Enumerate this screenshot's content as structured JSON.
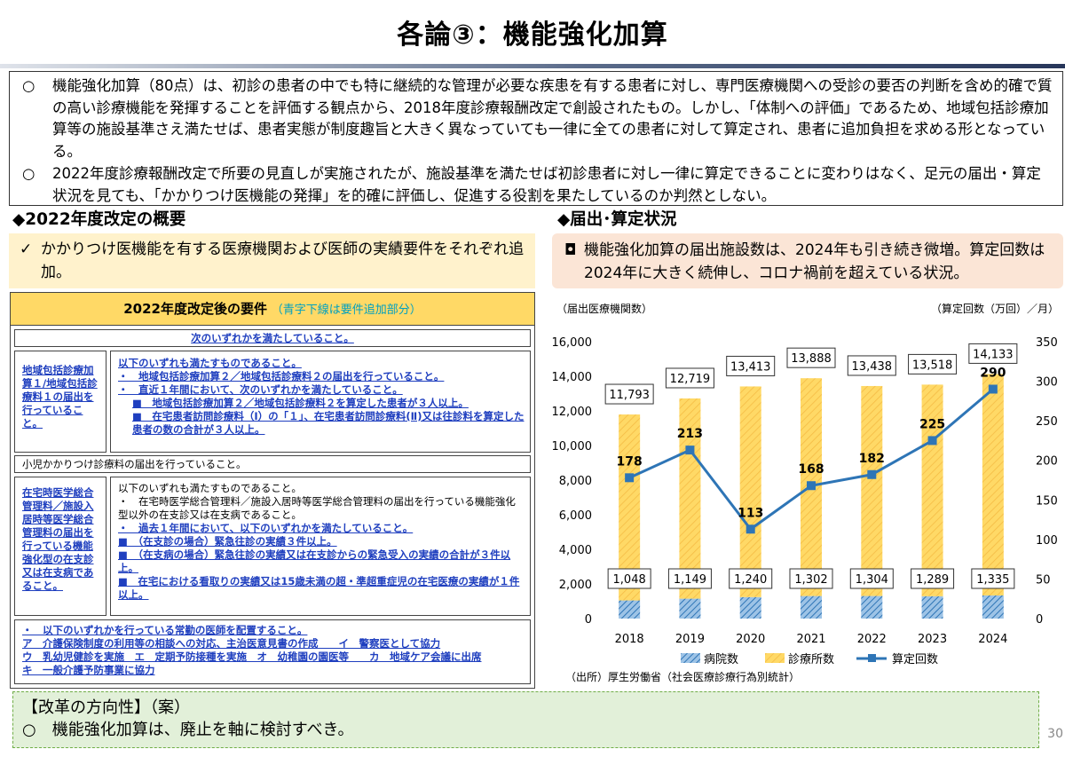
{
  "title": "各論③：機能強化加算",
  "intro": {
    "marker": "○",
    "p1": "機能強化加算（80点）は、初診の患者の中でも特に継続的な管理が必要な疾患を有する患者に対し、専門医療機関への受診の要否の判断を含め的確で質の高い診療機能を発揮することを評価する観点から、2018年度診療報酬改定で創設されたもの。しかし、「体制への評価」であるため、地域包括診療加算等の施設基準さえ満たせば、患者実態が制度趣旨と大きく異なっていても一律に全ての患者に対して算定され、患者に追加負担を求める形となっている。",
    "p2": "2022年度診療報酬改定で所要の見直しが実施されたが、施設基準を満たせば初診患者に対し一律に算定できることに変わりはなく、足元の届出・算定状況を見ても、「かかりつけ医機能の発揮」を的確に評価し、促進する役割を果たしているのか判然としない。"
  },
  "left": {
    "heading": "◆2022年度改定の概要",
    "callout_mark": "✓",
    "callout": "かかりつけ医機能を有する医療機関および医師の実績要件をそれぞれ追加。",
    "req_title": "2022年度改定後の要件",
    "req_note": "（青字下線は要件追加部分）",
    "either": "次のいずれかを満たしていること。",
    "r1_label": "地域包括診療加算１/地域包括診療料１の届出を行っていること。",
    "r1_l1": "以下のいずれも満たすものであること。",
    "r1_l2": "・　地域包括診療加算２／地域包括診療料２の届出を行っていること。",
    "r1_l3": "・　直近１年間において、次のいずれかを満たしていること。",
    "r1_l4": "■　地域包括診療加算２／地域包括診療料２を算定した患者が３人以上。",
    "r1_l5": "■　在宅患者訪問診療料（Ⅰ）の「１」、在宅患者訪問診療料(Ⅱ)又は往診料を算定した患者の数の合計が３人以上。",
    "r2": "小児かかりつけ診療料の届出を行っていること。",
    "r3_label": "在宅時医学総合管理料／施設入居時等医学総合管理料の届出を行っている機能強化型の在支診又は在支病であること。",
    "r3_l1": "以下のいずれも満たすものであること。",
    "r3_l2": "・　在宅時医学総合管理料／施設入居時等医学総合管理料の届出を行っている機能強化型以外の在支診又は在支病であること。",
    "r3_l3": "・　過去１年間において、以下のいずれかを満たしていること。",
    "r3_l4": "■　（在支診の場合）緊急往診の実績３件以上。",
    "r3_l5": "■　（在支病の場合）緊急往診の実績又は在支診からの緊急受入の実績の合計が３件以上。",
    "r3_l6": "■　在宅における看取りの実績又は15歳未満の超・準超重症児の在宅医療の実績が１件以上。",
    "r4_l1": "・　以下のいずれかを行っている常勤の医師を配置すること。",
    "r4_l2": "ア　介護保険制度の利用等の相談への対応、主治医意見書の作成　　イ　警察医として協力",
    "r4_l3": "ウ　乳幼児健診を実施　エ　定期予防接種を実施　オ　幼稚園の園医等　　カ　地域ケア会議に出席",
    "r4_l4": "キ　一般介護予防事業に協力"
  },
  "right": {
    "heading": "◆届出･算定状況",
    "callout_mark": "◘",
    "callout": "機能強化加算の届出施設数は、2024年も引き続き微増。算定回数は2024年に大きく続伸し、コロナ禍前を超えている状況。",
    "source": "（出所）厚生労働省（社会医療診療行為別統計）"
  },
  "chart_data": {
    "type": "bar",
    "categories": [
      "2018",
      "2019",
      "2020",
      "2021",
      "2022",
      "2023",
      "2024"
    ],
    "series": [
      {
        "name": "病院数",
        "type": "stacked-bar",
        "axis": "left",
        "color": "#5b9bd5",
        "values": [
          1048,
          1149,
          1240,
          1302,
          1304,
          1289,
          1335
        ]
      },
      {
        "name": "診療所数",
        "type": "stacked-bar",
        "axis": "left",
        "color": "#ffd966",
        "values": [
          10745,
          11570,
          12173,
          12586,
          12134,
          12229,
          12798
        ]
      },
      {
        "name": "算定回数",
        "type": "line",
        "axis": "right",
        "color": "#2e75b6",
        "values": [
          178,
          213,
          113,
          168,
          182,
          225,
          290
        ]
      }
    ],
    "totals": [
      "11,793",
      "12,719",
      "13,413",
      "13,888",
      "13,438",
      "13,518",
      "14,133"
    ],
    "hospital_labels": [
      "1,048",
      "1,149",
      "1,240",
      "1,302",
      "1,304",
      "1,289",
      "1,335"
    ],
    "line_labels": [
      "178",
      "213",
      "113",
      "168",
      "182",
      "225",
      "290"
    ],
    "ylabel_left": "（届出医療機関数）",
    "ylabel_right": "（算定回数（万回）／月）",
    "ylim_left": [
      0,
      16000
    ],
    "ylim_right": [
      0,
      350
    ],
    "yticks_left": [
      "0",
      "2,000",
      "4,000",
      "6,000",
      "8,000",
      "10,000",
      "12,000",
      "14,000",
      "16,000"
    ],
    "yticks_right": [
      "0",
      "50",
      "100",
      "150",
      "200",
      "250",
      "300",
      "350"
    ],
    "legend_position": "bottom"
  },
  "reform": {
    "heading": "【改革の方向性】（案）",
    "marker": "○",
    "text": "機能強化加算は、廃止を軸に検討すべき。"
  },
  "page_number": "30"
}
